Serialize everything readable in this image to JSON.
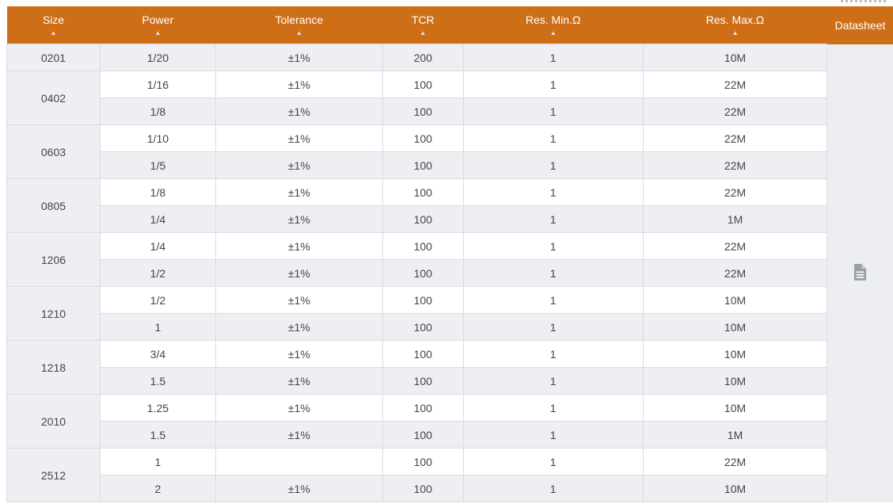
{
  "table": {
    "header": {
      "sort_arrow": "▲",
      "background": "#ce6f17",
      "text_color": "#ffffff",
      "columns": [
        {
          "key": "size",
          "label": "Size",
          "sortable": true
        },
        {
          "key": "power",
          "label": "Power",
          "sortable": true
        },
        {
          "key": "tolerance",
          "label": "Tolerance",
          "sortable": true
        },
        {
          "key": "tcr",
          "label": "TCR",
          "sortable": true
        },
        {
          "key": "res-min",
          "label": "Res. Min.Ω",
          "sortable": true
        },
        {
          "key": "res-max",
          "label": "Res. Max.Ω",
          "sortable": true
        },
        {
          "key": "datasheet",
          "label": "Datasheet",
          "sortable": false
        }
      ]
    },
    "groups": [
      {
        "size": "0201",
        "rows": [
          {
            "power": "1/20",
            "tolerance": "±1%",
            "tcr": "200",
            "res_min": "1",
            "res_max": "10M"
          }
        ]
      },
      {
        "size": "0402",
        "rows": [
          {
            "power": "1/16",
            "tolerance": "±1%",
            "tcr": "100",
            "res_min": "1",
            "res_max": "22M"
          },
          {
            "power": "1/8",
            "tolerance": "±1%",
            "tcr": "100",
            "res_min": "1",
            "res_max": "22M"
          }
        ]
      },
      {
        "size": "0603",
        "rows": [
          {
            "power": "1/10",
            "tolerance": "±1%",
            "tcr": "100",
            "res_min": "1",
            "res_max": "22M"
          },
          {
            "power": "1/5",
            "tolerance": "±1%",
            "tcr": "100",
            "res_min": "1",
            "res_max": "22M"
          }
        ]
      },
      {
        "size": "0805",
        "rows": [
          {
            "power": "1/8",
            "tolerance": "±1%",
            "tcr": "100",
            "res_min": "1",
            "res_max": "22M"
          },
          {
            "power": "1/4",
            "tolerance": "±1%",
            "tcr": "100",
            "res_min": "1",
            "res_max": "1M"
          }
        ]
      },
      {
        "size": "1206",
        "rows": [
          {
            "power": "1/4",
            "tolerance": "±1%",
            "tcr": "100",
            "res_min": "1",
            "res_max": "22M"
          },
          {
            "power": "1/2",
            "tolerance": "±1%",
            "tcr": "100",
            "res_min": "1",
            "res_max": "22M"
          }
        ]
      },
      {
        "size": "1210",
        "rows": [
          {
            "power": "1/2",
            "tolerance": "±1%",
            "tcr": "100",
            "res_min": "1",
            "res_max": "10M"
          },
          {
            "power": "1",
            "tolerance": "±1%",
            "tcr": "100",
            "res_min": "1",
            "res_max": "10M"
          }
        ]
      },
      {
        "size": "1218",
        "rows": [
          {
            "power": "3/4",
            "tolerance": "±1%",
            "tcr": "100",
            "res_min": "1",
            "res_max": "10M"
          },
          {
            "power": "1.5",
            "tolerance": "±1%",
            "tcr": "100",
            "res_min": "1",
            "res_max": "10M"
          }
        ]
      },
      {
        "size": "2010",
        "rows": [
          {
            "power": "1.25",
            "tolerance": "±1%",
            "tcr": "100",
            "res_min": "1",
            "res_max": "10M"
          },
          {
            "power": "1.5",
            "tolerance": "±1%",
            "tcr": "100",
            "res_min": "1",
            "res_max": "1M"
          }
        ]
      },
      {
        "size": "2512",
        "rows": [
          {
            "power": "1",
            "tolerance": "",
            "tcr": "100",
            "res_min": "1",
            "res_max": "22M"
          },
          {
            "power": "2",
            "tolerance": "±1%",
            "tcr": "100",
            "res_min": "1",
            "res_max": "10M"
          }
        ]
      }
    ],
    "datasheet_icon": "document-icon",
    "colors": {
      "header_orange": "#ce6f17",
      "stripe_gray": "#edeff2",
      "datasheet_gray": "#eceef1",
      "border_gray": "#d9dce1",
      "cell_text": "#454545",
      "icon_gray": "#98a0a7"
    }
  }
}
